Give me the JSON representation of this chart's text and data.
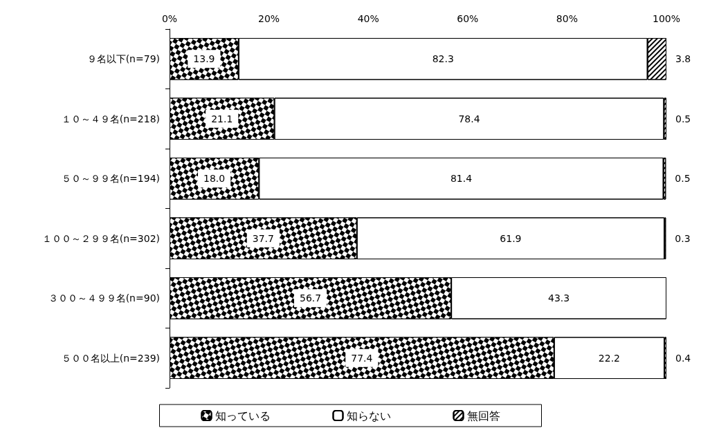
{
  "chart_data": {
    "type": "bar",
    "orientation": "horizontal",
    "stacked": true,
    "categories": [
      "９名以下(n=79)",
      "１０～４９名(n=218)",
      "５０～９９名(n=194)",
      "１００～２９９名(n=302)",
      "３００～４９９名(n=90)",
      "５００名以上(n=239)"
    ],
    "series": [
      {
        "name": "知っている",
        "color": "#000000",
        "values": [
          13.9,
          21.1,
          18.0,
          37.7,
          56.7,
          77.4
        ],
        "value_labels": [
          "13.9",
          "21.1",
          "18.0",
          "37.7",
          "56.7",
          "77.4"
        ]
      },
      {
        "name": "知らない",
        "color": "#ffffff",
        "values": [
          82.3,
          78.4,
          81.4,
          61.9,
          43.3,
          22.2
        ],
        "value_labels": [
          "82.3",
          "78.4",
          "81.4",
          "61.9",
          "43.3",
          "22.2"
        ]
      },
      {
        "name": "無回答",
        "color": "#ffffff",
        "values": [
          3.8,
          0.5,
          0.5,
          0.3,
          0,
          0.4
        ],
        "value_labels": [
          "3.8",
          "0.5",
          "0.5",
          "0.3",
          null,
          "0.4"
        ]
      }
    ],
    "xlim": [
      0,
      100
    ],
    "xticks": [
      {
        "value": 0,
        "label": "0%"
      },
      {
        "value": 20,
        "label": "20%"
      },
      {
        "value": 40,
        "label": "40%"
      },
      {
        "value": 60,
        "label": "60%"
      },
      {
        "value": 80,
        "label": "80%"
      },
      {
        "value": 100,
        "label": "100%"
      }
    ],
    "legend": "bottom",
    "grid": false
  }
}
